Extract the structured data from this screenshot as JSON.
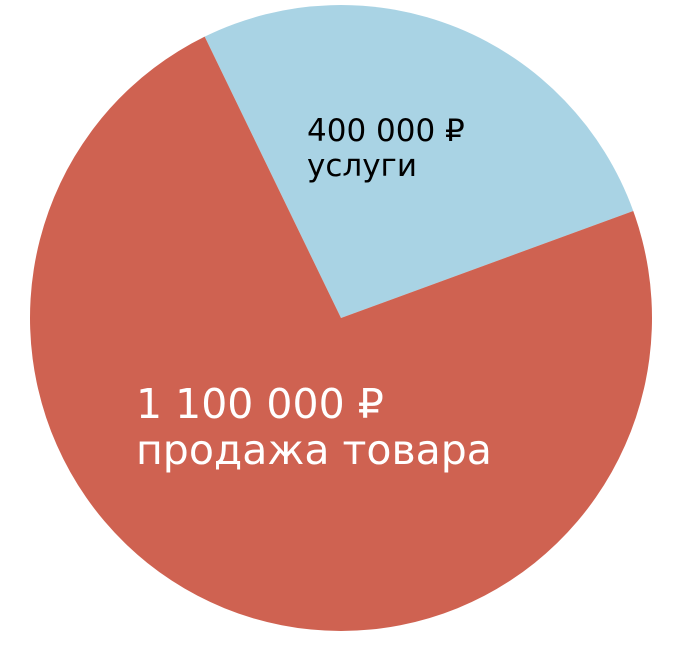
{
  "chart_data": {
    "type": "pie",
    "slices": [
      {
        "value": 400000,
        "value_label": "400 000 ₽",
        "label": "услуги",
        "color": "#a9d3e4",
        "text_color": "#000000"
      },
      {
        "value": 1100000,
        "value_label": "1 100 000 ₽",
        "label": "продажа товара",
        "color": "#cf6251",
        "text_color": "#ffffff"
      }
    ],
    "legend": "none"
  }
}
